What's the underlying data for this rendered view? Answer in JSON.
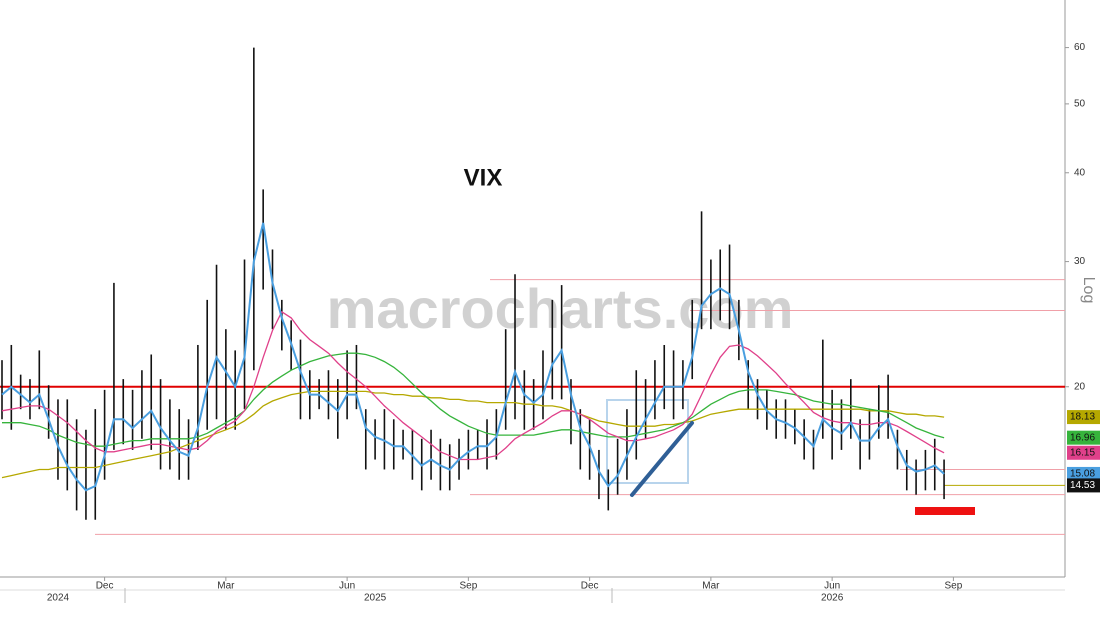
{
  "chart_data": {
    "type": "range-bar",
    "title": "VIX",
    "watermark": "macrocharts.com",
    "y_scale_label": "Log",
    "log_scale": true,
    "ylim": [
      10.8,
      70
    ],
    "yticks": [
      20,
      30,
      40,
      50,
      60
    ],
    "categories": [
      null,
      null,
      null,
      null,
      null,
      null,
      null,
      null,
      null,
      null,
      null,
      "Dec",
      null,
      null,
      null,
      null,
      null,
      null,
      null,
      null,
      null,
      null,
      null,
      null,
      "Mar",
      null,
      null,
      null,
      null,
      null,
      null,
      null,
      null,
      null,
      null,
      null,
      null,
      "Jun",
      null,
      null,
      null,
      null,
      null,
      null,
      null,
      null,
      null,
      null,
      null,
      null,
      "Sep",
      null,
      null,
      null,
      null,
      null,
      null,
      null,
      null,
      null,
      null,
      null,
      null,
      "Dec",
      null,
      null,
      null,
      null,
      null,
      null,
      null,
      null,
      null,
      null,
      null,
      null,
      "Mar",
      null,
      null,
      null,
      null,
      null,
      null,
      null,
      null,
      null,
      null,
      null,
      null,
      "Jun",
      null,
      null,
      null,
      null,
      null,
      null,
      null,
      null,
      null,
      null,
      null,
      null,
      "Sep",
      null,
      null,
      null,
      null,
      null,
      null,
      null,
      null,
      null,
      null,
      null
    ],
    "years": [
      null,
      null,
      null,
      null,
      null,
      null,
      "2024",
      null,
      null,
      null,
      null,
      null,
      null,
      null,
      null,
      null,
      null,
      null,
      null,
      null,
      null,
      null,
      null,
      null,
      null,
      null,
      null,
      null,
      null,
      null,
      null,
      null,
      null,
      null,
      null,
      null,
      null,
      null,
      null,
      null,
      "2025",
      null,
      null,
      null,
      null,
      null,
      null,
      null,
      null,
      null,
      null,
      null,
      null,
      null,
      null,
      null,
      null,
      null,
      null,
      null,
      null,
      null,
      null,
      null,
      null,
      null,
      null,
      null,
      null,
      null,
      null,
      null,
      null,
      null,
      null,
      null,
      null,
      null,
      null,
      null,
      null,
      null,
      null,
      null,
      null,
      null,
      null,
      null,
      null,
      "2026",
      null,
      null,
      null,
      null,
      null,
      null,
      null,
      null,
      null,
      null,
      null,
      null,
      null,
      null,
      null,
      null,
      null,
      null,
      null,
      null,
      null,
      null,
      null,
      null
    ],
    "bar_color": "#111111",
    "high": [
      21.8,
      22.9,
      20.8,
      20.5,
      22.5,
      20.1,
      19.2,
      19.2,
      18.0,
      17.4,
      18.6,
      19.8,
      28.0,
      20.5,
      19.8,
      21.1,
      22.2,
      20.5,
      19.2,
      18.6,
      18.0,
      22.9,
      26.5,
      29.7,
      24.1,
      22.5,
      30.2,
      60.0,
      37.9,
      31.2,
      26.5,
      24.8,
      23.3,
      21.1,
      20.5,
      21.1,
      20.5,
      22.5,
      22.9,
      18.6,
      18.0,
      18.6,
      18.0,
      17.4,
      17.4,
      16.9,
      17.4,
      16.9,
      16.6,
      16.9,
      17.4,
      17.4,
      18.0,
      18.6,
      24.1,
      28.8,
      21.1,
      20.5,
      22.5,
      26.5,
      27.8,
      20.5,
      18.6,
      18.0,
      16.3,
      15.3,
      16.9,
      18.6,
      21.1,
      20.5,
      21.8,
      22.9,
      22.5,
      21.8,
      26.5,
      35.3,
      30.2,
      31.2,
      31.7,
      26.5,
      21.8,
      20.5,
      19.8,
      19.2,
      19.2,
      18.6,
      18.0,
      17.4,
      23.3,
      19.8,
      19.2,
      20.5,
      18.0,
      18.6,
      20.1,
      20.8,
      17.4,
      16.3,
      15.8,
      16.3,
      16.9,
      15.8,
      null,
      null,
      null,
      null,
      null,
      null,
      null,
      null,
      null,
      null,
      null,
      null
    ],
    "low": [
      18.0,
      17.4,
      18.6,
      18.0,
      18.6,
      16.9,
      14.8,
      14.3,
      13.4,
      13.0,
      13.0,
      14.8,
      16.3,
      16.6,
      16.3,
      16.9,
      16.3,
      15.3,
      15.3,
      14.8,
      14.8,
      16.3,
      17.4,
      18.0,
      17.4,
      17.4,
      18.6,
      21.1,
      27.4,
      24.1,
      22.5,
      21.1,
      18.0,
      18.0,
      18.6,
      18.0,
      16.9,
      18.0,
      18.6,
      15.3,
      15.8,
      15.3,
      15.3,
      15.8,
      14.8,
      14.3,
      14.8,
      14.3,
      14.3,
      14.8,
      15.3,
      15.8,
      15.3,
      15.8,
      17.4,
      18.0,
      17.4,
      17.4,
      18.0,
      19.2,
      19.2,
      16.6,
      15.3,
      14.8,
      13.9,
      13.4,
      14.1,
      14.8,
      15.8,
      16.9,
      18.0,
      18.6,
      18.0,
      18.6,
      20.5,
      24.1,
      24.1,
      24.8,
      24.1,
      21.8,
      18.6,
      18.0,
      17.4,
      16.9,
      16.9,
      16.6,
      15.8,
      15.3,
      16.9,
      15.8,
      16.3,
      16.9,
      15.3,
      15.8,
      16.9,
      16.9,
      15.3,
      14.3,
      14.1,
      14.3,
      14.3,
      13.9,
      null,
      null,
      null,
      null,
      null,
      null,
      null,
      null,
      null,
      null,
      null,
      null
    ],
    "last_price": 14.53,
    "moving_averages": [
      {
        "color": "#b5a800",
        "values": [
          14.9,
          15,
          15.1,
          15.2,
          15.3,
          15.3,
          15.4,
          15.4,
          15.4,
          15.4,
          15.4,
          15.5,
          15.6,
          15.7,
          15.8,
          15.9,
          16,
          16.1,
          16.2,
          16.4,
          16.6,
          16.8,
          17,
          17.2,
          17.4,
          17.6,
          17.9,
          18.3,
          18.8,
          19.1,
          19.3,
          19.5,
          19.6,
          19.7,
          19.7,
          19.7,
          19.7,
          19.7,
          19.7,
          19.7,
          19.6,
          19.6,
          19.5,
          19.5,
          19.4,
          19.4,
          19.3,
          19.3,
          19.2,
          19.2,
          19.1,
          19.1,
          19,
          19,
          19,
          19,
          18.9,
          18.9,
          18.8,
          18.8,
          18.7,
          18.5,
          18.3,
          18.1,
          17.9,
          17.8,
          17.7,
          17.6,
          17.6,
          17.6,
          17.6,
          17.7,
          17.7,
          17.8,
          17.9,
          18.1,
          18.3,
          18.4,
          18.5,
          18.6,
          18.6,
          18.6,
          18.6,
          18.6,
          18.6,
          18.6,
          18.6,
          18.6,
          18.6,
          18.6,
          18.6,
          18.6,
          18.6,
          18.5,
          18.5,
          18.5,
          18.4,
          18.3,
          18.3,
          18.2,
          18.2,
          18.13,
          null,
          null,
          null,
          null,
          null,
          null,
          null,
          null,
          null,
          null,
          null,
          null
        ]
      },
      {
        "color": "#36b43c",
        "values": [
          17.8,
          17.8,
          17.8,
          17.7,
          17.6,
          17.4,
          17.1,
          16.9,
          16.7,
          16.6,
          16.5,
          16.5,
          16.6,
          16.7,
          16.8,
          16.8,
          16.9,
          16.9,
          16.9,
          16.9,
          16.9,
          17,
          17.2,
          17.5,
          17.8,
          18.1,
          18.5,
          19.2,
          19.8,
          20.3,
          20.7,
          21.1,
          21.4,
          21.7,
          21.9,
          22.1,
          22.2,
          22.3,
          22.3,
          22.2,
          22,
          21.7,
          21.3,
          20.8,
          20.2,
          19.6,
          19.1,
          18.6,
          18.2,
          17.9,
          17.6,
          17.4,
          17.2,
          17.1,
          17.1,
          17.1,
          17.1,
          17.1,
          17.2,
          17.3,
          17.4,
          17.4,
          17.3,
          17.2,
          17.1,
          17,
          17,
          17,
          17.1,
          17.2,
          17.3,
          17.4,
          17.6,
          17.8,
          18.1,
          18.5,
          18.9,
          19.2,
          19.5,
          19.7,
          19.8,
          19.8,
          19.8,
          19.7,
          19.6,
          19.5,
          19.3,
          19.1,
          19,
          18.9,
          18.9,
          18.8,
          18.7,
          18.6,
          18.5,
          18.4,
          18.1,
          17.8,
          17.5,
          17.3,
          17.1,
          16.96,
          null,
          null,
          null,
          null,
          null,
          null,
          null,
          null,
          null,
          null,
          null,
          null
        ]
      },
      {
        "color": "#e0408a",
        "values": [
          18.5,
          18.6,
          18.7,
          18.8,
          18.8,
          18.6,
          18.2,
          17.8,
          17.3,
          16.8,
          16.4,
          16.2,
          16.2,
          16.3,
          16.4,
          16.5,
          16.6,
          16.6,
          16.5,
          16.4,
          16.3,
          16.4,
          16.8,
          17.3,
          17.6,
          17.9,
          18.5,
          20,
          22,
          24,
          25.5,
          25,
          24,
          23.3,
          22.8,
          22.3,
          21.6,
          21,
          20.5,
          20,
          19.4,
          18.8,
          18.3,
          17.8,
          17.4,
          17,
          16.6,
          16.2,
          16,
          15.8,
          15.8,
          15.8,
          15.9,
          16,
          16.4,
          16.9,
          17.2,
          17.5,
          17.8,
          18.2,
          18.5,
          18.5,
          18.3,
          18,
          17.6,
          17.2,
          17,
          16.8,
          16.8,
          16.9,
          17,
          17.2,
          17.4,
          17.7,
          18.3,
          19.5,
          20.8,
          22,
          22.8,
          22.9,
          22.6,
          22.1,
          21.5,
          20.9,
          20.2,
          19.6,
          19,
          18.4,
          18.1,
          17.9,
          17.8,
          17.8,
          17.7,
          17.7,
          17.8,
          17.8,
          17.6,
          17.3,
          17,
          16.7,
          16.4,
          16.15,
          null,
          null,
          null,
          null,
          null,
          null,
          null,
          null,
          null,
          null,
          null,
          null
        ]
      },
      {
        "color": "#4a9fe0",
        "values": [
          19.5,
          20,
          19.5,
          19,
          19.5,
          18,
          16.5,
          15.5,
          14.8,
          14.3,
          14.5,
          16,
          18,
          18,
          17.5,
          18,
          18.5,
          17.5,
          16.8,
          16.2,
          16,
          17.5,
          20,
          22,
          21,
          20,
          22,
          30,
          34,
          28,
          25,
          23,
          21,
          19.5,
          19.5,
          19,
          18.5,
          19.5,
          19.5,
          17.5,
          17,
          16.8,
          16.5,
          16.5,
          16,
          15.5,
          15.8,
          15.5,
          15.3,
          15.8,
          16.2,
          16.5,
          16.5,
          17,
          19,
          21,
          19.5,
          19,
          19.5,
          21.5,
          22.5,
          19.5,
          17.5,
          16.5,
          15.2,
          14.5,
          15,
          16,
          17,
          18,
          19,
          20,
          20,
          20,
          22,
          26,
          27,
          27.5,
          27,
          24,
          21,
          19.5,
          18.5,
          18,
          17.8,
          17.5,
          17,
          16.5,
          18,
          17.5,
          17.2,
          17.8,
          16.8,
          16.8,
          17.5,
          18,
          16.5,
          15.5,
          15.2,
          15.3,
          15.5,
          15.08,
          null,
          null,
          null,
          null,
          null,
          null,
          null,
          null,
          null,
          null,
          null,
          null
        ]
      }
    ],
    "level_line": {
      "value": 20,
      "color": "#e00000"
    },
    "reference_lines": [
      28.3,
      25.6,
      15.3,
      14.1,
      12.4
    ],
    "reference_color": "#f0a0a8"
  }
}
